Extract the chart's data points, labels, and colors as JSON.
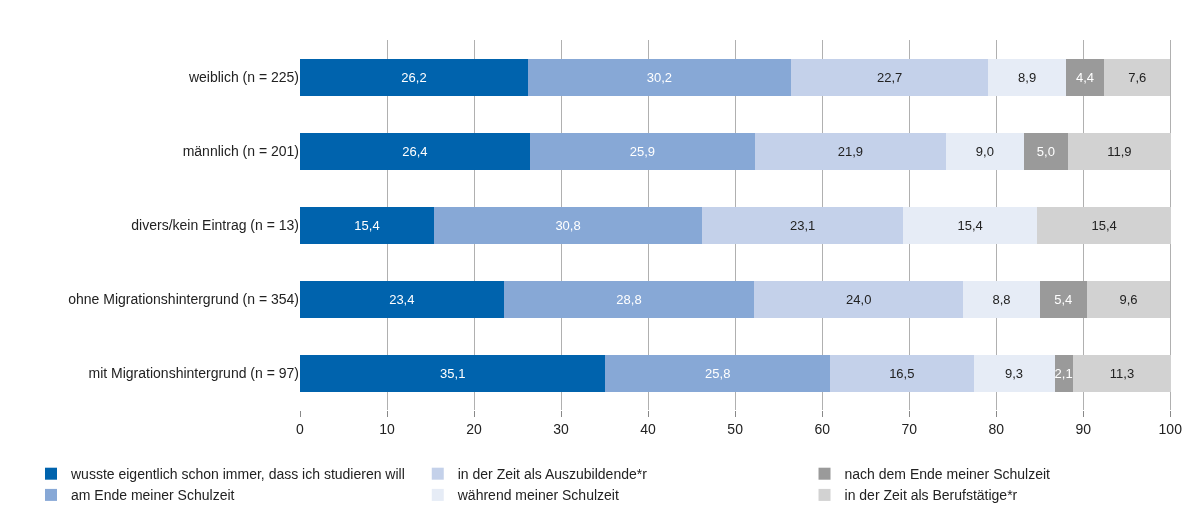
{
  "chart_data": {
    "type": "bar",
    "orientation": "horizontal",
    "stacked": true,
    "categories": [
      "weiblich (n = 225)",
      "männlich (n = 201)",
      "divers/kein Eintrag (n = 13)",
      "ohne Migrationshintergrund (n = 354)",
      "mit Migrationshintergrund (n = 97)"
    ],
    "series": [
      {
        "name": "wusste eigentlich schon immer, dass ich studieren will",
        "color": "#0063ad",
        "values": [
          26.2,
          26.4,
          15.4,
          23.4,
          35.1
        ],
        "value_labels": [
          "26,2",
          "26,4",
          "15,4",
          "23,4",
          "35,1"
        ]
      },
      {
        "name": "am Ende meiner Schulzeit",
        "color": "#87a8d6",
        "values": [
          30.2,
          25.9,
          30.8,
          28.8,
          25.8
        ],
        "value_labels": [
          "30,2",
          "25,9",
          "30,8",
          "28,8",
          "25,8"
        ]
      },
      {
        "name": "in der Zeit als Auszubildende*r",
        "color": "#c4d1ea",
        "values": [
          22.7,
          21.9,
          23.1,
          24.0,
          16.5
        ],
        "value_labels": [
          "22,7",
          "21,9",
          "23,1",
          "24,0",
          "16,5"
        ]
      },
      {
        "name": "während meiner Schulzeit",
        "color": "#e6ecf6",
        "values": [
          8.9,
          9.0,
          15.4,
          8.8,
          9.3
        ],
        "value_labels": [
          "8,9",
          "9,0",
          "15,4",
          "8,8",
          "9,3"
        ]
      },
      {
        "name": "nach dem Ende meiner Schulzeit",
        "color": "#9a9a9a",
        "values": [
          4.4,
          5.0,
          null,
          5.4,
          2.1
        ],
        "value_labels": [
          "4,4",
          "5,0",
          null,
          "5,4",
          "2,1"
        ]
      },
      {
        "name": "in der Zeit als Berufstätige*r",
        "color": "#d2d2d2",
        "values": [
          7.6,
          11.9,
          15.4,
          9.6,
          11.3
        ],
        "value_labels": [
          "7,6",
          "11,9",
          "15,4",
          "9,6",
          "11,3"
        ]
      }
    ],
    "xlim": [
      0,
      100.2
    ],
    "xticks": [
      0,
      10,
      20,
      30,
      40,
      50,
      60,
      70,
      80,
      90,
      100
    ],
    "grid": "x",
    "legend": "bottom"
  }
}
